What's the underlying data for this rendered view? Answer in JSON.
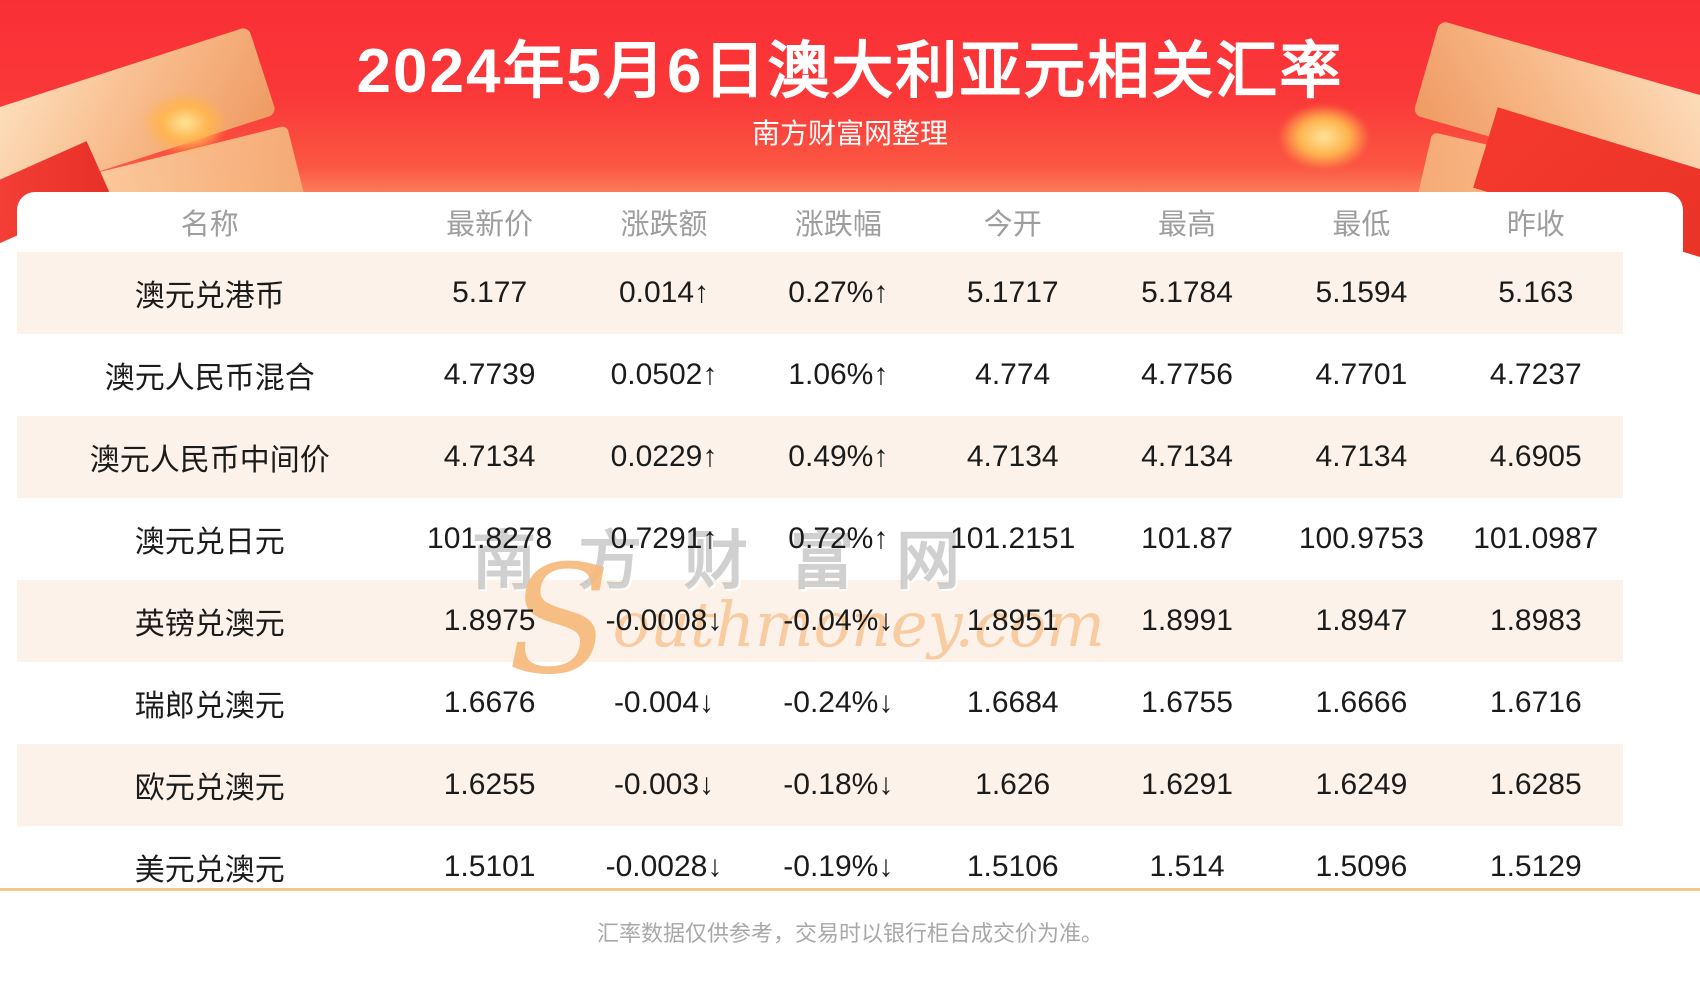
{
  "banner": {
    "title": "2024年5月6日澳大利亚元相关汇率",
    "subtitle": "南方财富网整理"
  },
  "table": {
    "columns": [
      "名称",
      "最新价",
      "涨跌额",
      "涨跌幅",
      "今开",
      "最高",
      "最低",
      "昨收"
    ],
    "rows": [
      {
        "name": "澳元兑港币",
        "latest": "5.177",
        "change": "0.014↑",
        "change_pct": "0.27%↑",
        "open": "5.1717",
        "high": "5.1784",
        "low": "5.1594",
        "prev_close": "5.163",
        "direction": "up"
      },
      {
        "name": "澳元人民币混合",
        "latest": "4.7739",
        "change": "0.0502↑",
        "change_pct": "1.06%↑",
        "open": "4.774",
        "high": "4.7756",
        "low": "4.7701",
        "prev_close": "4.7237",
        "direction": "up"
      },
      {
        "name": "澳元人民币中间价",
        "latest": "4.7134",
        "change": "0.0229↑",
        "change_pct": "0.49%↑",
        "open": "4.7134",
        "high": "4.7134",
        "low": "4.7134",
        "prev_close": "4.6905",
        "direction": "up"
      },
      {
        "name": "澳元兑日元",
        "latest": "101.8278",
        "change": "0.7291↑",
        "change_pct": "0.72%↑",
        "open": "101.2151",
        "high": "101.87",
        "low": "100.9753",
        "prev_close": "101.0987",
        "direction": "up"
      },
      {
        "name": "英镑兑澳元",
        "latest": "1.8975",
        "change": "-0.0008↓",
        "change_pct": "-0.04%↓",
        "open": "1.8951",
        "high": "1.8991",
        "low": "1.8947",
        "prev_close": "1.8983",
        "direction": "down"
      },
      {
        "name": "瑞郎兑澳元",
        "latest": "1.6676",
        "change": "-0.004↓",
        "change_pct": "-0.24%↓",
        "open": "1.6684",
        "high": "1.6755",
        "low": "1.6666",
        "prev_close": "1.6716",
        "direction": "down"
      },
      {
        "name": "欧元兑澳元",
        "latest": "1.6255",
        "change": "-0.003↓",
        "change_pct": "-0.18%↓",
        "open": "1.626",
        "high": "1.6291",
        "low": "1.6249",
        "prev_close": "1.6285",
        "direction": "down"
      },
      {
        "name": "美元兑澳元",
        "latest": "1.5101",
        "change": "-0.0028↓",
        "change_pct": "-0.19%↓",
        "open": "1.5106",
        "high": "1.514",
        "low": "1.5096",
        "prev_close": "1.5129",
        "direction": "down"
      }
    ]
  },
  "watermark": {
    "cn": "南方财富网",
    "en_initial": "S",
    "en_rest": "outhmoney.com"
  },
  "footer": {
    "note": "汇率数据仅供参考，交易时以银行柜台成交价为准。"
  },
  "colors": {
    "banner_red": "#fa3838",
    "up_red": "#f52626",
    "down_green": "#1d9d1d",
    "row_alt_bg": "#fcf2e9",
    "divider_orange": "#f4c78e",
    "header_gray": "#9e9e9e"
  }
}
